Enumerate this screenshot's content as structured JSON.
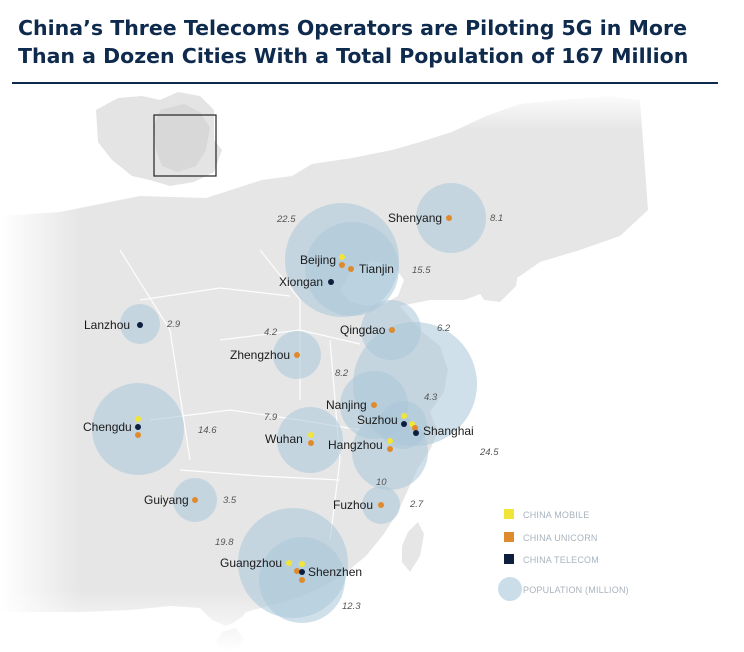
{
  "title": {
    "line1": "China’s Three Telecoms Operators are Piloting 5G in More",
    "line2": "Than a Dozen Cities With a Total Population of 167 Million"
  },
  "colors": {
    "title": "#0e2a4d",
    "china_mobile": "#f2e53a",
    "china_unicorn": "#e08a2e",
    "china_telecom": "#0e1f3d",
    "population": "#a9c7d8",
    "land": "#e6e6e6",
    "sea": "#ffffff"
  },
  "legend": {
    "mobile": "CHINA MOBILE",
    "unicorn": "CHINA UNICORN",
    "telecom": "CHINA TELECOM",
    "population": "POPULATION (MILLION)"
  },
  "cities": [
    {
      "name": "Shenyang",
      "pop": "8.1",
      "operators": [
        "unicorn"
      ]
    },
    {
      "name": "Beijing",
      "pop": "22.5",
      "operators": [
        "mobile",
        "unicorn"
      ]
    },
    {
      "name": "Tianjin",
      "pop": "15.5",
      "operators": [
        "unicorn"
      ]
    },
    {
      "name": "Xiongan",
      "pop": "",
      "operators": [
        "telecom"
      ]
    },
    {
      "name": "Lanzhou",
      "pop": "2.9",
      "operators": [
        "telecom"
      ]
    },
    {
      "name": "Qingdao",
      "pop": "6.2",
      "operators": [
        "unicorn"
      ]
    },
    {
      "name": "Zhengzhou",
      "pop": "4.2",
      "operators": [
        "unicorn"
      ]
    },
    {
      "name": "Nanjing",
      "pop": "8.2",
      "operators": [
        "unicorn"
      ]
    },
    {
      "name": "Suzhou",
      "pop": "4.3",
      "operators": [
        "mobile",
        "telecom"
      ]
    },
    {
      "name": "Shanghai",
      "pop": "24.5",
      "operators": [
        "mobile",
        "unicorn",
        "telecom"
      ]
    },
    {
      "name": "Chengdu",
      "pop": "14.6",
      "operators": [
        "mobile",
        "telecom",
        "unicorn"
      ]
    },
    {
      "name": "Wuhan",
      "pop": "7.9",
      "operators": [
        "mobile",
        "unicorn"
      ]
    },
    {
      "name": "Hangzhou",
      "pop": "10",
      "operators": [
        "mobile",
        "unicorn"
      ]
    },
    {
      "name": "Guiyang",
      "pop": "3.5",
      "operators": [
        "unicorn"
      ]
    },
    {
      "name": "Fuzhou",
      "pop": "2.7",
      "operators": [
        "unicorn"
      ]
    },
    {
      "name": "Guangzhou",
      "pop": "19.8",
      "operators": [
        "mobile",
        "unicorn"
      ]
    },
    {
      "name": "Shenzhen",
      "pop": "12.3",
      "operators": [
        "mobile",
        "telecom",
        "unicorn"
      ]
    }
  ]
}
